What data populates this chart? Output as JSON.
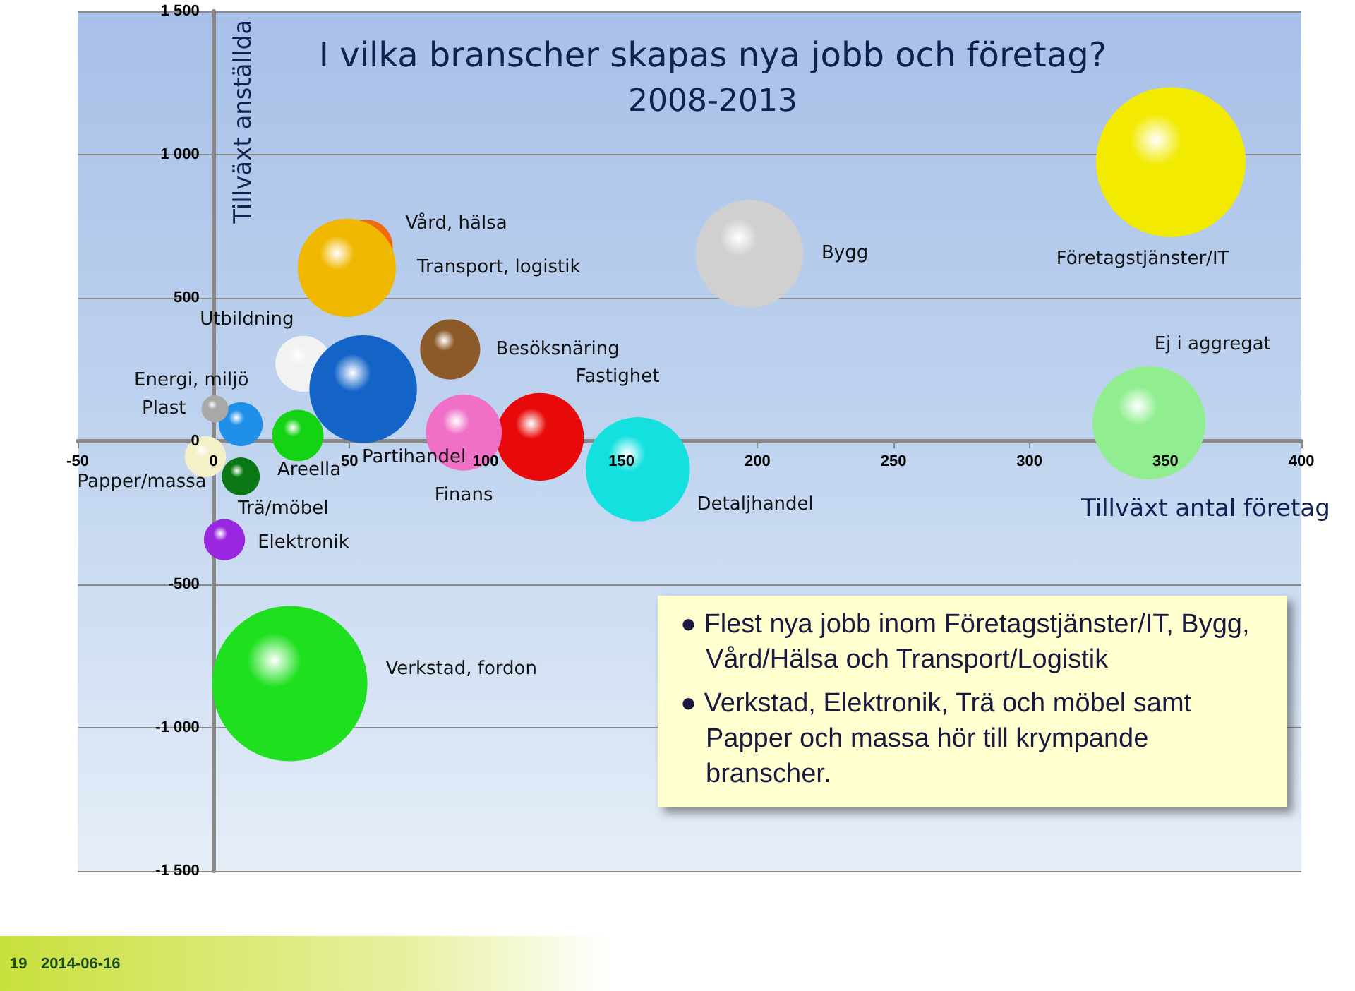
{
  "chart_data": {
    "type": "bubble",
    "title": "I vilka branscher skapas nya jobb och företag?",
    "subtitle": "2008-2013",
    "xlabel": "Tillväxt antal företag",
    "ylabel": "Tillväxt anställda",
    "xlim": [
      -50,
      400
    ],
    "xticks": [
      -50,
      0,
      50,
      100,
      150,
      200,
      250,
      300,
      350,
      400
    ],
    "ylim": [
      -1500,
      1500
    ],
    "yticks": [
      {
        "value": -1500,
        "label": "-1 500"
      },
      {
        "value": -1000,
        "label": "-1 000"
      },
      -500,
      0,
      500,
      {
        "value": 1000,
        "label": "1 000"
      },
      {
        "value": 1500,
        "label": "1 500"
      }
    ],
    "grid": "y",
    "legend": false,
    "series": [
      {
        "name": "Företagstjänster/IT",
        "color": "#f2ea00",
        "x": [
          352
        ],
        "values": [
          974
        ],
        "sizes": [
          0.93
        ]
      },
      {
        "name": "Bygg",
        "color": "#d0d0d0",
        "x": [
          197
        ],
        "values": [
          654
        ],
        "sizes": [
          0.48
        ]
      },
      {
        "name": "Vård, hälsa",
        "color": "#f06a10",
        "x": [
          56
        ],
        "values": [
          679
        ],
        "sizes": [
          0.12
        ]
      },
      {
        "name": "Transport, logistik",
        "color": "#f0b800",
        "x": [
          49
        ],
        "values": [
          605
        ],
        "sizes": [
          0.4
        ]
      },
      {
        "name": "Utbildning",
        "color": "#f2f2f2",
        "x": [
          33
        ],
        "values": [
          270
        ],
        "sizes": [
          0.13
        ]
      },
      {
        "name": "Partihandel",
        "color": "#1464c8",
        "x": [
          55
        ],
        "values": [
          182
        ],
        "sizes": [
          0.48
        ]
      },
      {
        "name": "Besöksnäring",
        "color": "#8c5a28",
        "x": [
          87
        ],
        "values": [
          320
        ],
        "sizes": [
          0.15
        ]
      },
      {
        "name": "Fastighet",
        "color": "#e80a0a",
        "x": [
          120
        ],
        "values": [
          15
        ],
        "sizes": [
          0.32
        ]
      },
      {
        "name": "Finans",
        "color": "#f070c8",
        "x": [
          92
        ],
        "values": [
          30
        ],
        "sizes": [
          0.24
        ]
      },
      {
        "name": "Detaljhandel",
        "color": "#14e0e0",
        "x": [
          156
        ],
        "values": [
          -98
        ],
        "sizes": [
          0.45
        ]
      },
      {
        "name": "Ej i aggregat",
        "color": "#90ee90",
        "x": [
          344
        ],
        "values": [
          64
        ],
        "sizes": [
          0.53
        ]
      },
      {
        "name": "Energi, miljö",
        "color": "#1e90e8",
        "x": [
          10
        ],
        "values": [
          59
        ],
        "sizes": [
          0.08
        ]
      },
      {
        "name": "Plast",
        "color": "#a8a8a8",
        "x": [
          0.5
        ],
        "values": [
          113
        ],
        "sizes": [
          0.03
        ]
      },
      {
        "name": "Areella",
        "color": "#14d214",
        "x": [
          31
        ],
        "values": [
          20
        ],
        "sizes": [
          0.11
        ]
      },
      {
        "name": "Papper/massa",
        "color": "#f4f0c8",
        "x": [
          -3
        ],
        "values": [
          -54
        ],
        "sizes": [
          0.07
        ]
      },
      {
        "name": "Trä/möbel",
        "color": "#0a7814",
        "x": [
          10
        ],
        "values": [
          -123
        ],
        "sizes": [
          0.06
        ]
      },
      {
        "name": "Elektronik",
        "color": "#9a28e0",
        "x": [
          4
        ],
        "values": [
          -344
        ],
        "sizes": [
          0.07
        ]
      },
      {
        "name": "Verkstad, fordon",
        "color": "#1ee01e",
        "x": [
          28
        ],
        "values": [
          -846
        ],
        "sizes": [
          1
        ]
      }
    ],
    "annotations": [
      "● Flest nya jobb inom Företagstjänster/IT, Bygg, Vård/Hälsa och Transport/Logistik",
      "● Verkstad, Elektronik, Trä och möbel samt Papper och massa hör till krympande branscher.",
      "19",
      "2014-06-16"
    ]
  }
}
